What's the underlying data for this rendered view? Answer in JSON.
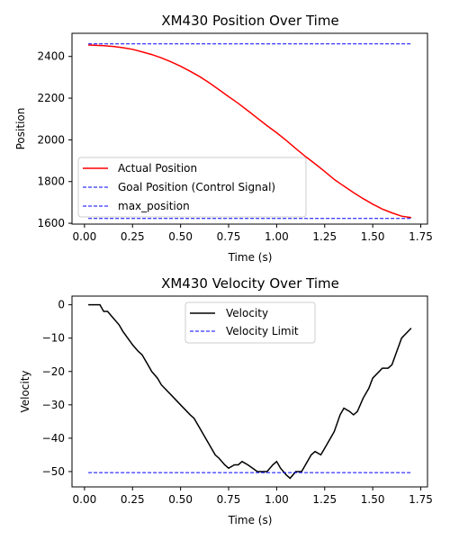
{
  "chart_data": [
    {
      "type": "line",
      "title": "XM430 Position Over Time",
      "xlabel": "Time (s)",
      "ylabel": "Position",
      "xlim": [
        -0.065,
        1.785
      ],
      "ylim": [
        1596,
        2511
      ],
      "xticks": [
        0.0,
        0.25,
        0.5,
        0.75,
        1.0,
        1.25,
        1.5,
        1.75
      ],
      "xtick_labels": [
        "0.00",
        "0.25",
        "0.50",
        "0.75",
        "1.00",
        "1.25",
        "1.50",
        "1.75"
      ],
      "yticks": [
        1600,
        1800,
        2000,
        2200,
        2400
      ],
      "ytick_labels": [
        "1600",
        "1800",
        "2000",
        "2200",
        "2400"
      ],
      "grid": false,
      "legend": "lower-left",
      "series": [
        {
          "name": "Actual Position",
          "color": "#ff0000",
          "style": "solid",
          "x": [
            0.02,
            0.1,
            0.15,
            0.2,
            0.25,
            0.3,
            0.35,
            0.4,
            0.45,
            0.5,
            0.55,
            0.6,
            0.65,
            0.7,
            0.75,
            0.8,
            0.85,
            0.9,
            0.95,
            1.0,
            1.05,
            1.1,
            1.15,
            1.2,
            1.25,
            1.3,
            1.35,
            1.4,
            1.45,
            1.5,
            1.55,
            1.6,
            1.65,
            1.7
          ],
          "y": [
            2455,
            2452,
            2448,
            2442,
            2434,
            2422,
            2409,
            2393,
            2374,
            2353,
            2329,
            2303,
            2273,
            2241,
            2207,
            2175,
            2140,
            2104,
            2068,
            2034,
            1997,
            1958,
            1920,
            1885,
            1848,
            1810,
            1778,
            1747,
            1718,
            1692,
            1668,
            1650,
            1634,
            1627
          ]
        },
        {
          "name": "Goal Position (Control Signal)",
          "color": "#0000ff",
          "style": "dashed",
          "x": [
            0.02,
            1.7
          ],
          "y": [
            2460,
            2460
          ]
        },
        {
          "name": "max_position",
          "color": "#0000ff",
          "style": "dashed",
          "x": [
            0.02,
            1.7
          ],
          "y": [
            1623,
            1623
          ]
        }
      ]
    },
    {
      "type": "line",
      "title": "XM430 Velocity Over Time",
      "xlabel": "Time (s)",
      "ylabel": "Velocity",
      "xlim": [
        -0.065,
        1.785
      ],
      "ylim": [
        -54.6,
        2.6
      ],
      "xticks": [
        0.0,
        0.25,
        0.5,
        0.75,
        1.0,
        1.25,
        1.5,
        1.75
      ],
      "xtick_labels": [
        "0.00",
        "0.25",
        "0.50",
        "0.75",
        "1.00",
        "1.25",
        "1.50",
        "1.75"
      ],
      "yticks": [
        -50,
        -40,
        -30,
        -20,
        -10,
        0
      ],
      "ytick_labels": [
        "−50",
        "−40",
        "−30",
        "−20",
        "−10",
        "0"
      ],
      "grid": false,
      "legend": "top-center",
      "series": [
        {
          "name": "Velocity",
          "color": "#000000",
          "style": "solid",
          "x": [
            0.02,
            0.05,
            0.08,
            0.1,
            0.12,
            0.15,
            0.18,
            0.2,
            0.25,
            0.28,
            0.3,
            0.33,
            0.35,
            0.38,
            0.4,
            0.45,
            0.5,
            0.55,
            0.57,
            0.6,
            0.62,
            0.65,
            0.68,
            0.7,
            0.73,
            0.75,
            0.78,
            0.8,
            0.82,
            0.85,
            0.9,
            0.95,
            0.98,
            1.0,
            1.02,
            1.05,
            1.07,
            1.1,
            1.13,
            1.15,
            1.18,
            1.2,
            1.23,
            1.25,
            1.28,
            1.3,
            1.33,
            1.35,
            1.38,
            1.4,
            1.42,
            1.45,
            1.48,
            1.5,
            1.55,
            1.58,
            1.6,
            1.65,
            1.7
          ],
          "y": [
            0,
            0,
            0,
            -2,
            -2,
            -4,
            -6,
            -8,
            -12,
            -14,
            -15,
            -18,
            -20,
            -22,
            -24,
            -27,
            -30,
            -33,
            -34,
            -37,
            -39,
            -42,
            -45,
            -46,
            -48,
            -49,
            -48,
            -48,
            -47,
            -48,
            -50,
            -50,
            -48,
            -47,
            -49,
            -51,
            -52,
            -50,
            -50,
            -48,
            -45,
            -44,
            -45,
            -43,
            -40,
            -38,
            -33,
            -31,
            -32,
            -33,
            -32,
            -28,
            -25,
            -22,
            -19,
            -19,
            -18,
            -10,
            -7
          ]
        },
        {
          "name": "Velocity Limit",
          "color": "#0000ff",
          "style": "dashed",
          "x": [
            0.02,
            1.7
          ],
          "y": [
            -50.3,
            -50.3
          ]
        }
      ]
    }
  ]
}
